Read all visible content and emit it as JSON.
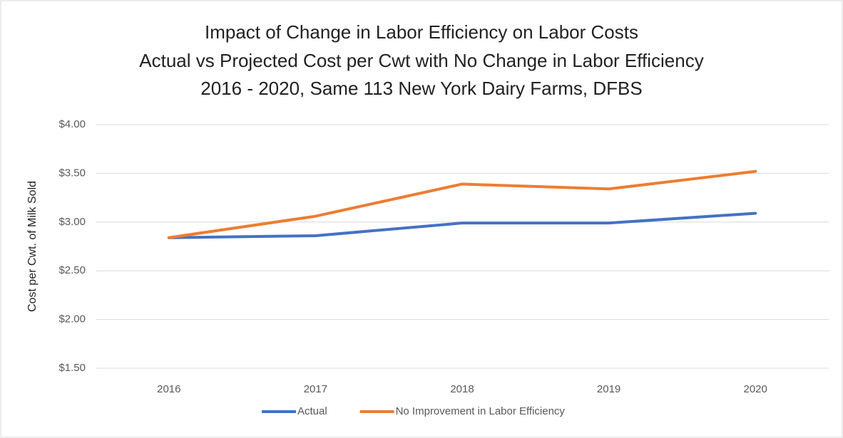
{
  "chart_data": {
    "type": "line",
    "title": [
      "Impact of Change in Labor Efficiency on Labor Costs",
      "Actual vs Projected Cost per Cwt with No Change in Labor Efficiency",
      "2016 - 2020, Same 113 New York Dairy Farms, DFBS"
    ],
    "y_label": "Cost per Cwt. of Milk Sold",
    "categories": [
      "2016",
      "2017",
      "2018",
      "2019",
      "2020"
    ],
    "series": [
      {
        "name": "Actual",
        "color": "#4472c4",
        "values": [
          2.84,
          2.86,
          2.99,
          2.99,
          3.09
        ]
      },
      {
        "name": "No Improvement in Labor Efficiency",
        "color": "#ed7d31",
        "values": [
          2.84,
          3.06,
          3.39,
          3.34,
          3.52
        ]
      }
    ],
    "ylim": [
      1.5,
      4.0
    ],
    "yticks": [
      {
        "value": 1.5,
        "label": "$1.50"
      },
      {
        "value": 2.0,
        "label": "$2.00"
      },
      {
        "value": 2.5,
        "label": "$2.50"
      },
      {
        "value": 3.0,
        "label": "$3.00"
      },
      {
        "value": 3.5,
        "label": "$3.50"
      },
      {
        "value": 4.0,
        "label": "$4.00"
      }
    ],
    "grid": true,
    "legend": "bottom"
  }
}
